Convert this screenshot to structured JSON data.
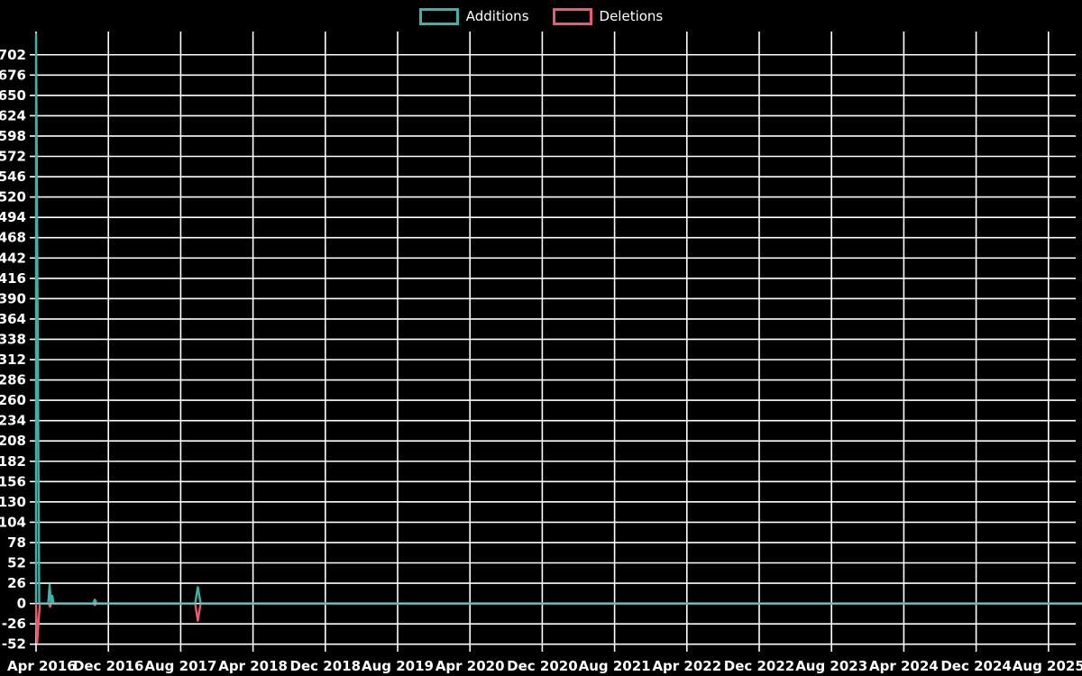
{
  "legend": {
    "items": [
      {
        "label": "Additions",
        "color": "#3fb1ab"
      },
      {
        "label": "Deletions",
        "color": "#ec5a6e"
      }
    ]
  },
  "colors": {
    "background": "#000000",
    "grid": "#ffffff",
    "additions": "#3fb1ab",
    "deletions": "#ec5a6e",
    "axis_text": "#ffffff"
  },
  "chart_data": {
    "type": "line",
    "title": "",
    "xlabel": "",
    "ylabel": "",
    "legend_position": "top-center",
    "grid": true,
    "x_axis": {
      "tick_labels": [
        "Apr 2016",
        "Dec 2016",
        "Aug 2017",
        "Apr 2018",
        "Dec 2018",
        "Aug 2019",
        "Apr 2020",
        "Dec 2020",
        "Aug 2021",
        "Apr 2022",
        "Dec 2022",
        "Aug 2023",
        "Apr 2024",
        "Dec 2024",
        "Aug 2025"
      ],
      "tick_interval_months": 8,
      "visible_span_months": 115.7
    },
    "y_axis": {
      "tick_labels": [
        702,
        676,
        650,
        624,
        598,
        572,
        546,
        520,
        494,
        468,
        442,
        416,
        390,
        364,
        338,
        312,
        286,
        260,
        234,
        208,
        182,
        156,
        130,
        104,
        78,
        52,
        26,
        0,
        -26,
        -52
      ],
      "tick_step": 26,
      "ylim": [
        -64,
        732
      ]
    },
    "baseline_value": 0,
    "series": [
      {
        "name": "Additions",
        "color": "#3fb1ab",
        "events": [
          {
            "date": "2016-04",
            "t_months": 0.0,
            "value": 728,
            "w_months": 0.35
          },
          {
            "date": "2016-05",
            "t_months": 1.5,
            "value": 24,
            "w_months": 0.15
          },
          {
            "date": "2016-06",
            "t_months": 1.8,
            "value": 10,
            "w_months": 0.15
          },
          {
            "date": "2016-10",
            "t_months": 6.5,
            "value": 5,
            "w_months": 0.2
          },
          {
            "date": "2017-10",
            "t_months": 17.9,
            "value": 21,
            "w_months": 0.3
          }
        ]
      },
      {
        "name": "Deletions",
        "color": "#ec5a6e",
        "events": [
          {
            "date": "2016-04",
            "t_months": 0.12,
            "value": -50,
            "w_months": 0.3
          },
          {
            "date": "2016-05",
            "t_months": 1.55,
            "value": -4,
            "w_months": 0.15
          },
          {
            "date": "2016-10",
            "t_months": 6.5,
            "value": -2,
            "w_months": 0.2
          },
          {
            "date": "2017-10",
            "t_months": 17.9,
            "value": -22,
            "w_months": 0.3
          }
        ]
      }
    ]
  }
}
